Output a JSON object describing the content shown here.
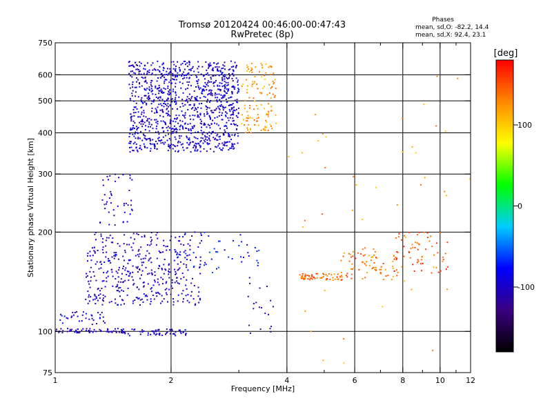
{
  "chart_data": {
    "type": "scatter",
    "title": "Tromsø 20120424 00:46:00-00:47:43",
    "subtitle": "RwPretec (8p)",
    "xlabel": "Frequency [MHz]",
    "ylabel": "Stationary phase Virtual Height [km]",
    "xscale": "log",
    "yscale": "log",
    "xlim": [
      1,
      12
    ],
    "ylim": [
      75,
      750
    ],
    "xticks": [
      1,
      2,
      4,
      6,
      8,
      10,
      12
    ],
    "xtick_labels": [
      "1",
      "2",
      "4",
      "6",
      "8",
      "10",
      "12"
    ],
    "xminor": [
      3,
      5,
      7,
      9,
      11
    ],
    "yticks": [
      75,
      100,
      200,
      300,
      400,
      500,
      600,
      750
    ],
    "ytick_labels": [
      "75",
      "100",
      "200",
      "300",
      "400",
      "500",
      "600",
      "750"
    ],
    "xgrid": [
      2,
      4,
      6,
      8,
      10
    ],
    "ygrid": [
      100,
      200,
      300,
      400,
      500,
      600
    ],
    "grid": true,
    "colorbar": {
      "label": "[deg]",
      "range": [
        -180,
        180
      ],
      "ticks": [
        100,
        0,
        -100
      ],
      "tick_labels": [
        "100",
        "0",
        "-100"
      ],
      "colors": [
        "#000000",
        "#3a0080",
        "#0000ff",
        "#00ccff",
        "#00ff00",
        "#ffff00",
        "#ff8800",
        "#ff0000"
      ]
    },
    "annotation": {
      "header": "Phases",
      "lines": [
        "mean, sd,O: -82.2, 14.4",
        "mean, sd,X: 92.4, 23.1"
      ]
    },
    "clusters": [
      {
        "f": [
          1.55,
          3.0
        ],
        "h": [
          350,
          660
        ],
        "phase": -95,
        "n": 1100
      },
      {
        "f": [
          3.05,
          3.75
        ],
        "h": [
          400,
          650
        ],
        "phase": 120,
        "n": 130
      },
      {
        "f": [
          1.3,
          1.6
        ],
        "h": [
          210,
          300
        ],
        "phase": -100,
        "n": 45
      },
      {
        "f": [
          1.2,
          2.4
        ],
        "h": [
          120,
          200
        ],
        "phase": -100,
        "n": 420
      },
      {
        "f": [
          1.0,
          1.5
        ],
        "h": [
          99,
          102
        ],
        "phase": -105,
        "n": 60
      },
      {
        "f": [
          1.5,
          2.2
        ],
        "h": [
          97,
          102
        ],
        "phase": -95,
        "n": 60
      },
      {
        "f": [
          1.02,
          1.35
        ],
        "h": [
          104,
          115
        ],
        "phase": -95,
        "n": 35
      },
      {
        "f": [
          2.0,
          3.5
        ],
        "h": [
          150,
          200
        ],
        "phase": -80,
        "n": 50
      },
      {
        "f": [
          4.3,
          5.6
        ],
        "h": [
          143,
          150
        ],
        "phase": 140,
        "n": 60
      },
      {
        "f": [
          5.5,
          7.8
        ],
        "h": [
          143,
          180
        ],
        "phase": 135,
        "n": 80
      },
      {
        "f": [
          7.6,
          10.5
        ],
        "h": [
          150,
          200
        ],
        "phase": 150,
        "n": 60
      },
      {
        "f": [
          3.1,
          3.7
        ],
        "h": [
          92,
          152
        ],
        "phase": -110,
        "n": 20
      },
      {
        "f": [
          4.0,
          12.0
        ],
        "h": [
          80,
          620
        ],
        "phase": 120,
        "n": 45
      }
    ]
  }
}
